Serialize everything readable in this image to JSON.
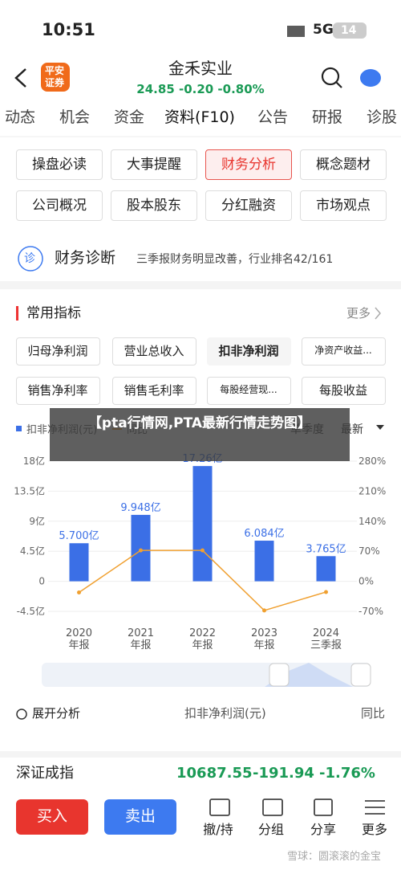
{
  "status_bar": {
    "time": "10:51",
    "network": "5G",
    "battery": "14"
  },
  "header": {
    "logo": [
      "平安",
      "证券"
    ],
    "title": "金禾实业",
    "quote": "24.85 -0.20 -0.80%"
  },
  "tabs": [
    "动态",
    "机会",
    "资金",
    "资料(F10)",
    "公告",
    "研报",
    "诊股"
  ],
  "active_tab": 3,
  "buttons": [
    "操盘必读",
    "大事提醒",
    "财务分析",
    "概念题材",
    "公司概况",
    "股本股东",
    "分红融资",
    "市场观点"
  ],
  "active_button": 2,
  "diagnosis": {
    "icon": "诊",
    "title": "财务诊断",
    "summary": "三季报财务明显改善，行业排名42/161"
  },
  "indicators": {
    "title": "常用指标",
    "more": "更多",
    "items": [
      "归母净利润",
      "营业总收入",
      "扣非净利润",
      "净资产收益...",
      "销售净利率",
      "销售毛利率",
      "每股经营现...",
      "每股收益"
    ],
    "active": 2
  },
  "banner": "【pta行情网,PTA最新行情走势图】",
  "chart_data": {
    "type": "bar",
    "period": "单季度",
    "range": "最新",
    "categories": [
      "2020",
      "2021",
      "2022",
      "2023",
      "2024"
    ],
    "sub_labels": [
      "年报",
      "年报",
      "年报",
      "年报",
      "三季报"
    ],
    "series": [
      {
        "name": "扣非净利润(元)",
        "type": "bar",
        "color": "#3b6fe6",
        "values": [
          5.7,
          9.948,
          17.26,
          6.084,
          3.765
        ],
        "value_labels": [
          "5.700亿",
          "9.948亿",
          "17.26亿",
          "6.084亿",
          "3.765亿"
        ]
      },
      {
        "name": "同比",
        "type": "line",
        "axis": "y2",
        "color": "#f0a030",
        "values": [
          -26,
          72,
          72,
          -68,
          -25
        ]
      }
    ],
    "ylim": [
      -4.5,
      18
    ],
    "yticks": [
      {
        "value": -4.5,
        "label": "-4.5亿"
      },
      0,
      {
        "value": 4.5,
        "label": "4.5亿"
      },
      {
        "value": 9,
        "label": "9亿"
      },
      {
        "value": 13.5,
        "label": "13.5亿"
      },
      {
        "value": 18,
        "label": "18亿"
      }
    ],
    "y2lim": [
      -70,
      280
    ],
    "y2ticks": [
      {
        "value": -70,
        "label": "-70%"
      },
      {
        "value": 0,
        "label": "0%"
      },
      {
        "value": 70,
        "label": "70%"
      },
      {
        "value": 140,
        "label": "140%"
      },
      {
        "value": 210,
        "label": "210%"
      },
      {
        "value": 280,
        "label": "280%"
      }
    ],
    "grid": true
  },
  "analysis": {
    "toggle": "展开分析",
    "metric": "扣非净利润(元)",
    "compare": "同比"
  },
  "index": {
    "name": "深证成指",
    "price": "10687.55",
    "change": "-191.94",
    "pct": "-1.76%"
  },
  "toolbar": {
    "buy": "买入",
    "sell": "卖出",
    "items": [
      "撤/持",
      "分组",
      "分享",
      "更多"
    ]
  },
  "watermark": "雪球：圆滚滚的金宝"
}
